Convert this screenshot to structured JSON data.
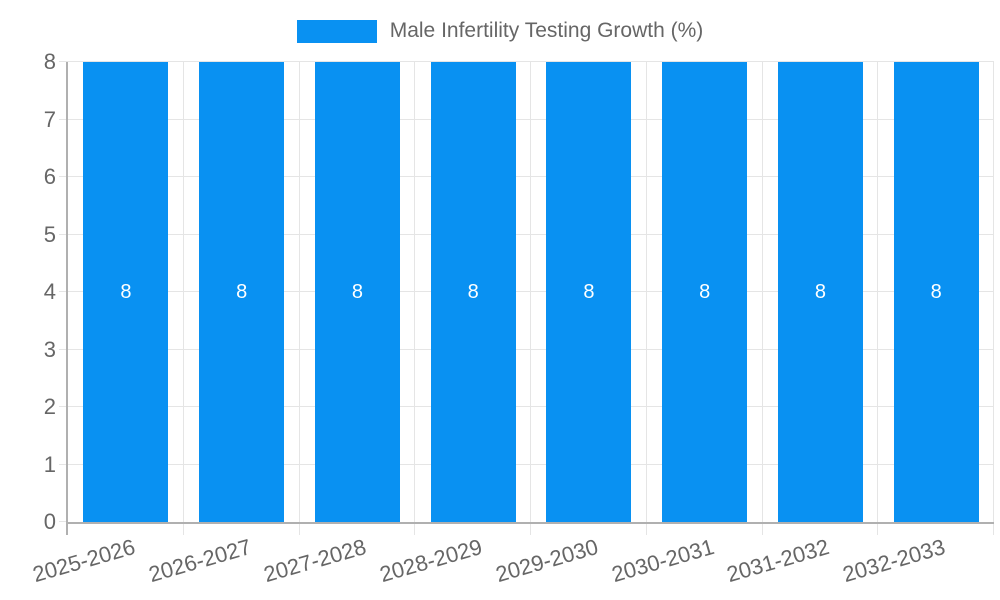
{
  "chart_data": {
    "type": "bar",
    "title": "Male Infertility Testing Growth (%)",
    "categories": [
      "2025-2026",
      "2026-2027",
      "2027-2028",
      "2028-2029",
      "2029-2030",
      "2030-2031",
      "2031-2032",
      "2032-2033"
    ],
    "series": [
      {
        "name": "Male Infertility Testing Growth (%)",
        "values": [
          8,
          8,
          8,
          8,
          8,
          8,
          8,
          8
        ]
      }
    ],
    "bar_value_labels": [
      "8",
      "8",
      "8",
      "8",
      "8",
      "8",
      "8",
      "8"
    ],
    "xlabel": "",
    "ylabel": "",
    "ylim": [
      0,
      8
    ],
    "yticks": [
      0,
      1,
      2,
      3,
      4,
      5,
      6,
      7,
      8
    ],
    "grid": true,
    "legend_position": "top",
    "x_label_rotation_deg": -16,
    "colors": {
      "bar": "#0991f2",
      "bar_label": "#ffffff",
      "text": "#666666",
      "grid": "#e5e5e5",
      "axis": "#b0b0b0",
      "background": "#ffffff"
    }
  }
}
